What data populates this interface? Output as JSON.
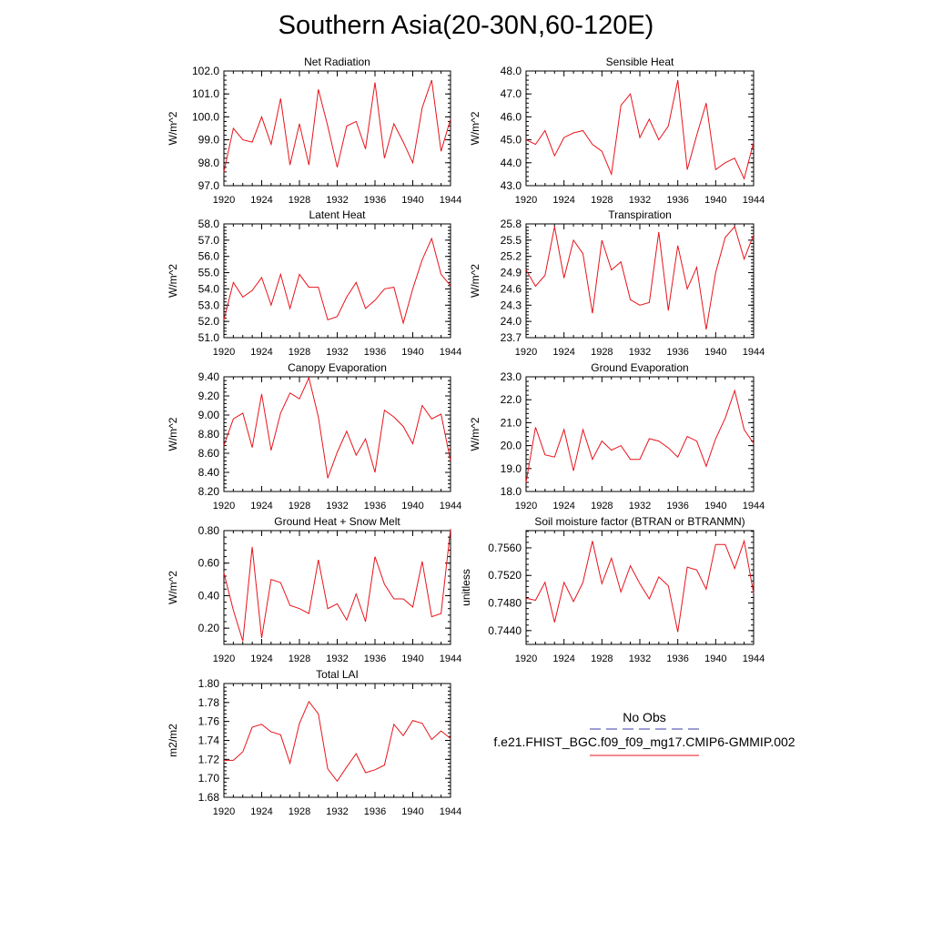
{
  "page": {
    "title": "Southern Asia(20-30N,60-120E)",
    "line_color": "#e8131b",
    "obs_color": "#3a3aa8"
  },
  "legend": {
    "obs_label": "No Obs",
    "model_label": "f.e21.FHIST_BGC.f09_f09_mg17.CMIP6-GMMIP.002"
  },
  "chart_data": [
    {
      "type": "line",
      "title": "Net Radiation",
      "ylabel": "W/m^2",
      "xlim": [
        1920,
        1944
      ],
      "xticks": [
        "1920",
        "1924",
        "1928",
        "1932",
        "1936",
        "1940",
        "1944"
      ],
      "ylim": [
        97.0,
        102.0
      ],
      "yticks": [
        "97.0",
        "98.0",
        "99.0",
        "100.0",
        "101.0",
        "102.0"
      ],
      "x_start": 1920,
      "values": [
        97.6,
        99.5,
        99.0,
        98.9,
        100.0,
        98.8,
        100.8,
        97.9,
        99.7,
        97.9,
        101.2,
        99.6,
        97.8,
        99.6,
        99.8,
        98.6,
        101.5,
        98.2,
        99.7,
        98.9,
        98.0,
        100.4,
        101.6,
        98.5,
        99.9
      ]
    },
    {
      "type": "line",
      "title": "Sensible Heat",
      "ylabel": "W/m^2",
      "xlim": [
        1920,
        1944
      ],
      "xticks": [
        "1920",
        "1924",
        "1928",
        "1932",
        "1936",
        "1940",
        "1944"
      ],
      "ylim": [
        43.0,
        48.0
      ],
      "yticks": [
        "43.0",
        "44.0",
        "45.0",
        "46.0",
        "47.0",
        "48.0"
      ],
      "x_start": 1920,
      "values": [
        45.0,
        44.8,
        45.4,
        44.3,
        45.1,
        45.3,
        45.4,
        44.8,
        44.5,
        43.5,
        46.5,
        47.0,
        45.1,
        45.9,
        45.0,
        45.6,
        47.6,
        43.7,
        45.2,
        46.6,
        43.7,
        44.0,
        44.2,
        43.3,
        44.9
      ]
    },
    {
      "type": "line",
      "title": "Latent Heat",
      "ylabel": "W/m^2",
      "xlim": [
        1920,
        1944
      ],
      "xticks": [
        "1920",
        "1924",
        "1928",
        "1932",
        "1936",
        "1940",
        "1944"
      ],
      "ylim": [
        51.0,
        58.0
      ],
      "yticks": [
        "51.0",
        "52.0",
        "53.0",
        "54.0",
        "55.0",
        "56.0",
        "57.0",
        "58.0"
      ],
      "x_start": 1920,
      "values": [
        52.1,
        54.4,
        53.5,
        53.9,
        54.7,
        53.0,
        54.9,
        52.8,
        54.9,
        54.1,
        54.1,
        52.1,
        52.3,
        53.5,
        54.4,
        52.8,
        53.3,
        54.0,
        54.1,
        51.9,
        54.0,
        55.8,
        57.1,
        54.9,
        54.2
      ]
    },
    {
      "type": "line",
      "title": "Transpiration",
      "ylabel": "W/m^2",
      "xlim": [
        1920,
        1944
      ],
      "xticks": [
        "1920",
        "1924",
        "1928",
        "1932",
        "1936",
        "1940",
        "1944"
      ],
      "ylim": [
        23.7,
        25.8
      ],
      "yticks": [
        "23.7",
        "24.0",
        "24.3",
        "24.6",
        "24.9",
        "25.2",
        "25.5",
        "25.8"
      ],
      "x_start": 1920,
      "values": [
        24.95,
        24.65,
        24.85,
        25.75,
        24.8,
        25.5,
        25.25,
        24.15,
        25.5,
        24.95,
        25.1,
        24.4,
        24.3,
        24.35,
        25.65,
        24.2,
        25.4,
        24.6,
        25.0,
        23.85,
        24.9,
        25.55,
        25.75,
        25.15,
        25.6
      ]
    },
    {
      "type": "line",
      "title": "Canopy Evaporation",
      "ylabel": "W/m^2",
      "xlim": [
        1920,
        1944
      ],
      "xticks": [
        "1920",
        "1924",
        "1928",
        "1932",
        "1936",
        "1940",
        "1944"
      ],
      "ylim": [
        8.2,
        9.4
      ],
      "yticks": [
        "8.20",
        "8.40",
        "8.60",
        "8.80",
        "9.00",
        "9.20",
        "9.40"
      ],
      "x_start": 1920,
      "values": [
        8.68,
        8.96,
        9.02,
        8.66,
        9.22,
        8.63,
        9.02,
        9.23,
        9.17,
        9.39,
        8.98,
        8.34,
        8.61,
        8.83,
        8.58,
        8.75,
        8.4,
        9.05,
        8.98,
        8.88,
        8.7,
        9.1,
        8.96,
        9.01,
        8.52
      ]
    },
    {
      "type": "line",
      "title": "Ground Evaporation",
      "ylabel": "W/m^2",
      "xlim": [
        1920,
        1944
      ],
      "xticks": [
        "1920",
        "1924",
        "1928",
        "1932",
        "1936",
        "1940",
        "1944"
      ],
      "ylim": [
        18.0,
        23.0
      ],
      "yticks": [
        "18.0",
        "19.0",
        "20.0",
        "21.0",
        "22.0",
        "23.0"
      ],
      "x_start": 1920,
      "values": [
        18.4,
        20.8,
        19.6,
        19.5,
        20.7,
        18.9,
        20.7,
        19.4,
        20.2,
        19.8,
        20.0,
        19.4,
        19.4,
        20.3,
        20.2,
        19.9,
        19.5,
        20.4,
        20.2,
        19.1,
        20.3,
        21.2,
        22.4,
        20.7,
        20.1
      ]
    },
    {
      "type": "line",
      "title": "Ground Heat + Snow Melt",
      "ylabel": "W/m^2",
      "xlim": [
        1920,
        1944
      ],
      "xticks": [
        "1920",
        "1924",
        "1928",
        "1932",
        "1936",
        "1940",
        "1944"
      ],
      "ylim": [
        0.1,
        0.8
      ],
      "yticks": [
        "0.20",
        "0.40",
        "0.60",
        "0.80"
      ],
      "ytick_values": [
        0.2,
        0.4,
        0.6,
        0.8
      ],
      "x_start": 1920,
      "values": [
        0.54,
        0.31,
        0.12,
        0.7,
        0.14,
        0.5,
        0.48,
        0.34,
        0.32,
        0.29,
        0.62,
        0.32,
        0.35,
        0.25,
        0.41,
        0.24,
        0.64,
        0.47,
        0.38,
        0.38,
        0.33,
        0.61,
        0.27,
        0.29,
        0.81
      ]
    },
    {
      "type": "line",
      "title": "Soil moisture factor (BTRAN or BTRANMN)",
      "ylabel": "unitless",
      "xlim": [
        1920,
        1944
      ],
      "xticks": [
        "1920",
        "1924",
        "1928",
        "1932",
        "1936",
        "1940",
        "1944"
      ],
      "ylim": [
        0.742,
        0.7585
      ],
      "yticks": [
        "0.7440",
        "0.7480",
        "0.7520",
        "0.7560"
      ],
      "ytick_values": [
        0.744,
        0.748,
        0.752,
        0.756
      ],
      "x_start": 1920,
      "values": [
        0.7487,
        0.7484,
        0.751,
        0.7452,
        0.751,
        0.7482,
        0.751,
        0.757,
        0.7508,
        0.7545,
        0.7496,
        0.7534,
        0.7508,
        0.7486,
        0.7518,
        0.7505,
        0.7438,
        0.7532,
        0.7528,
        0.75,
        0.7565,
        0.7565,
        0.753,
        0.757,
        0.7494
      ]
    },
    {
      "type": "line",
      "title": "Total LAI",
      "ylabel": "m2/m2",
      "xlim": [
        1920,
        1944
      ],
      "xticks": [
        "1920",
        "1924",
        "1928",
        "1932",
        "1936",
        "1940",
        "1944"
      ],
      "ylim": [
        1.68,
        1.8
      ],
      "yticks": [
        "1.68",
        "1.70",
        "1.72",
        "1.74",
        "1.76",
        "1.78",
        "1.80"
      ],
      "x_start": 1920,
      "values": [
        1.719,
        1.719,
        1.728,
        1.754,
        1.757,
        1.749,
        1.746,
        1.716,
        1.758,
        1.781,
        1.768,
        1.71,
        1.697,
        1.712,
        1.726,
        1.706,
        1.709,
        1.714,
        1.757,
        1.745,
        1.761,
        1.758,
        1.741,
        1.75,
        1.742
      ]
    }
  ]
}
